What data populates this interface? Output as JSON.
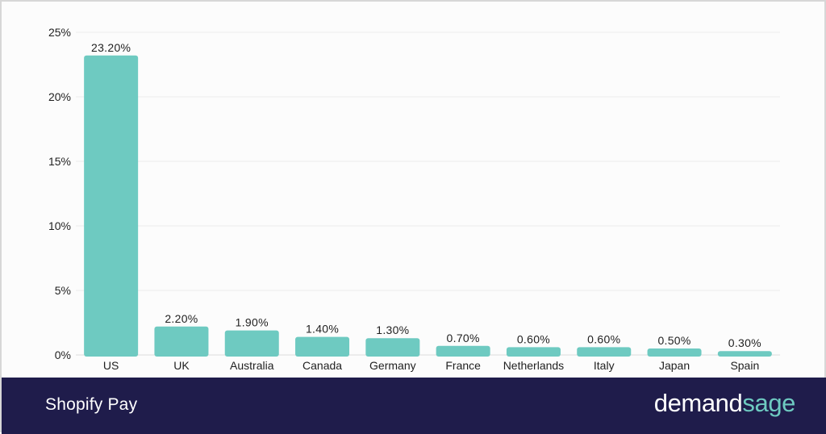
{
  "chart_data": {
    "type": "bar",
    "categories": [
      "US",
      "UK",
      "Australia",
      "Canada",
      "Germany",
      "France",
      "Netherlands",
      "Italy",
      "Japan",
      "Spain"
    ],
    "values": [
      23.2,
      2.2,
      1.9,
      1.4,
      1.3,
      0.7,
      0.6,
      0.6,
      0.5,
      0.3
    ],
    "data_labels": [
      "23.20%",
      "2.20%",
      "1.90%",
      "1.40%",
      "1.30%",
      "0.70%",
      "0.60%",
      "0.60%",
      "0.50%",
      "0.30%"
    ],
    "yticks": [
      0,
      5,
      10,
      15,
      20,
      25
    ],
    "ytick_labels": [
      "0%",
      "5%",
      "10%",
      "15%",
      "20%",
      "25%"
    ],
    "ylim": [
      0,
      25
    ],
    "grid": true,
    "bar_color": "#6ecac1"
  },
  "footer": {
    "title": "Shopify Pay",
    "brand_part1": "demand",
    "brand_part2": "sage"
  }
}
